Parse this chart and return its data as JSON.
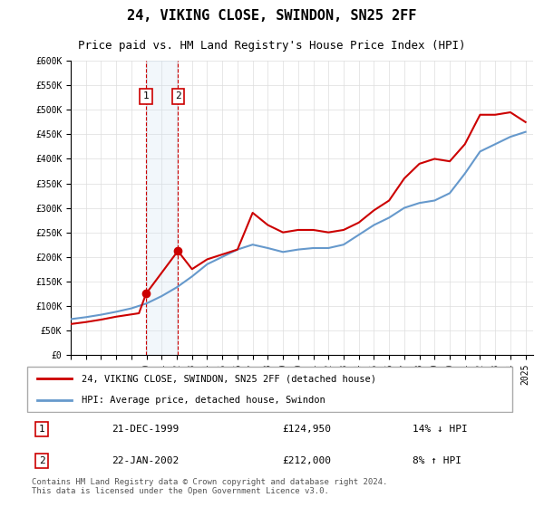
{
  "title": "24, VIKING CLOSE, SWINDON, SN25 2FF",
  "subtitle": "Price paid vs. HM Land Registry's House Price Index (HPI)",
  "legend_line1": "24, VIKING CLOSE, SWINDON, SN25 2FF (detached house)",
  "legend_line2": "HPI: Average price, detached house, Swindon",
  "footer": "Contains HM Land Registry data © Crown copyright and database right 2024.\nThis data is licensed under the Open Government Licence v3.0.",
  "sale1_label": "1",
  "sale1_date": "21-DEC-1999",
  "sale1_price": "£124,950",
  "sale1_hpi": "14% ↓ HPI",
  "sale2_label": "2",
  "sale2_date": "22-JAN-2002",
  "sale2_price": "£212,000",
  "sale2_hpi": "8% ↑ HPI",
  "sale1_x": 1999.97,
  "sale1_y": 124950,
  "sale2_x": 2002.07,
  "sale2_y": 212000,
  "ylim": [
    0,
    600000
  ],
  "xlim": [
    1995,
    2025.5
  ],
  "red_color": "#cc0000",
  "blue_color": "#6699cc",
  "shade_color": "#cce0f0",
  "hpi_x": [
    1995,
    1996,
    1997,
    1998,
    1999,
    2000,
    2001,
    2002,
    2003,
    2004,
    2005,
    2006,
    2007,
    2008,
    2009,
    2010,
    2011,
    2012,
    2013,
    2014,
    2015,
    2016,
    2017,
    2018,
    2019,
    2020,
    2021,
    2022,
    2023,
    2024,
    2025
  ],
  "hpi_y": [
    73000,
    77000,
    82000,
    88000,
    95000,
    105000,
    120000,
    138000,
    160000,
    185000,
    200000,
    215000,
    225000,
    218000,
    210000,
    215000,
    218000,
    218000,
    225000,
    245000,
    265000,
    280000,
    300000,
    310000,
    315000,
    330000,
    370000,
    415000,
    430000,
    445000,
    455000
  ],
  "price_x": [
    1995,
    1996,
    1997,
    1998,
    1999.5,
    1999.97,
    2002.07,
    2003,
    2004,
    2005,
    2006,
    2007,
    2008,
    2009,
    2010,
    2011,
    2012,
    2013,
    2014,
    2015,
    2016,
    2017,
    2018,
    2019,
    2020,
    2021,
    2022,
    2023,
    2024,
    2025
  ],
  "price_y": [
    63000,
    67000,
    72000,
    78000,
    85000,
    124950,
    212000,
    175000,
    195000,
    205000,
    215000,
    290000,
    265000,
    250000,
    255000,
    255000,
    250000,
    255000,
    270000,
    295000,
    315000,
    360000,
    390000,
    400000,
    395000,
    430000,
    490000,
    490000,
    495000,
    475000
  ],
  "xticks": [
    1995,
    1996,
    1997,
    1998,
    1999,
    2000,
    2001,
    2002,
    2003,
    2004,
    2005,
    2006,
    2007,
    2008,
    2009,
    2010,
    2011,
    2012,
    2013,
    2014,
    2015,
    2016,
    2017,
    2018,
    2019,
    2020,
    2021,
    2022,
    2023,
    2024,
    2025
  ],
  "yticks": [
    0,
    50000,
    100000,
    150000,
    200000,
    250000,
    300000,
    350000,
    400000,
    450000,
    500000,
    550000,
    600000
  ]
}
